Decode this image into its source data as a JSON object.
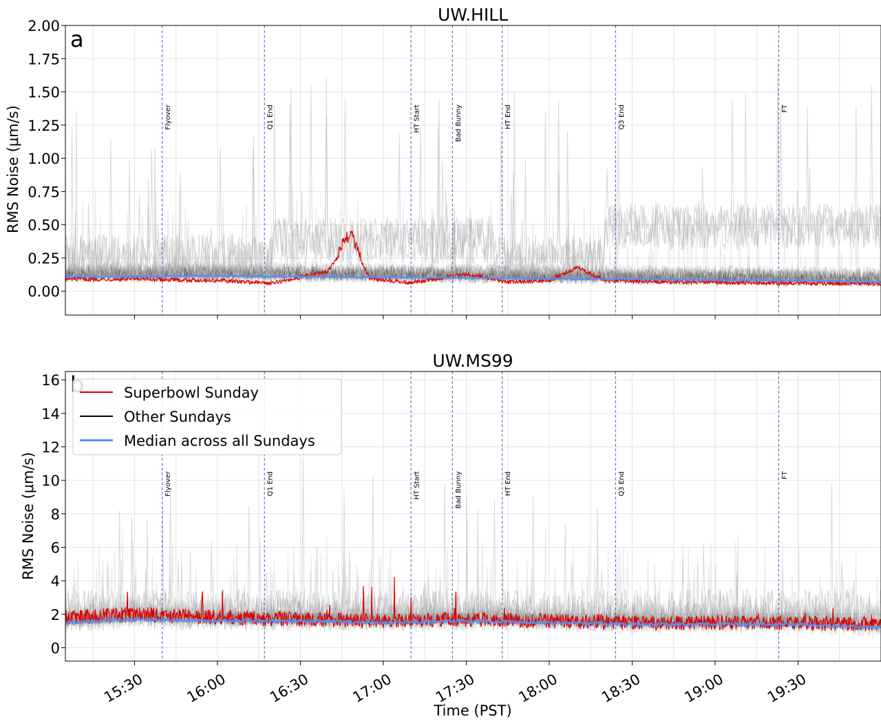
{
  "figure": {
    "xlabel": "Time (PST)",
    "x_tick_labels": [
      "15:30",
      "16:00",
      "16:30",
      "17:00",
      "17:30",
      "18:00",
      "18:30",
      "19:00",
      "19:30"
    ]
  },
  "legend": {
    "entries": [
      {
        "label": "Superbowl Sunday",
        "color": "#dd0000"
      },
      {
        "label": "Other Sundays",
        "color": "#000000"
      },
      {
        "label": "Median across all Sundays",
        "color": "#5b8def"
      }
    ]
  },
  "colors": {
    "superbowl": "#dd0000",
    "other": "#000000",
    "median": "#5b8def",
    "event_line": "#4f7fc8",
    "grid": "#e3e3e3"
  },
  "chart_data": [
    {
      "type": "line",
      "panel_letter": "a",
      "title": "UW.HILL",
      "xlabel": "",
      "ylabel": "RMS Noise (μm/s)",
      "xlim": [
        "15:05",
        "20:00"
      ],
      "ylim": [
        -0.18,
        2.0
      ],
      "yticks": [
        0,
        0.25,
        0.5,
        0.75,
        1.0,
        1.25,
        1.5,
        1.75,
        2.0
      ],
      "ytick_labels": [
        "0.00",
        "0.25",
        "0.50",
        "0.75",
        "1.00",
        "1.25",
        "1.50",
        "1.75",
        "2.00"
      ],
      "grid": true,
      "events": [
        {
          "label": "Flyover",
          "time": "15:40"
        },
        {
          "label": "Q1 End",
          "time": "16:17"
        },
        {
          "label": "HT Start",
          "time": "17:10"
        },
        {
          "label": "Bad Bunny",
          "time": "17:25"
        },
        {
          "label": "HT End",
          "time": "17:43"
        },
        {
          "label": "Q3 End",
          "time": "18:24"
        },
        {
          "label": "FT",
          "time": "19:23"
        }
      ],
      "series": [
        {
          "name": "Median across all Sundays",
          "x": [
            "15:05",
            "15:30",
            "16:00",
            "16:30",
            "17:00",
            "17:30",
            "18:00",
            "18:30",
            "19:00",
            "19:30",
            "20:00"
          ],
          "values": [
            0.11,
            0.11,
            0.115,
            0.11,
            0.105,
            0.1,
            0.095,
            0.09,
            0.085,
            0.08,
            0.07
          ]
        },
        {
          "name": "Superbowl Sunday",
          "x": [
            "15:05",
            "15:30",
            "16:00",
            "16:20",
            "16:40",
            "16:48",
            "16:55",
            "17:10",
            "17:30",
            "17:45",
            "18:00",
            "18:10",
            "18:20",
            "18:40",
            "19:00",
            "19:30",
            "20:00"
          ],
          "values": [
            0.09,
            0.09,
            0.08,
            0.06,
            0.15,
            0.4,
            0.1,
            0.06,
            0.13,
            0.07,
            0.08,
            0.18,
            0.08,
            0.07,
            0.065,
            0.06,
            0.055
          ]
        },
        {
          "name": "Other Sundays",
          "x": [
            "15:05",
            "15:30",
            "16:00",
            "16:30",
            "17:00",
            "17:30",
            "18:00",
            "18:30",
            "19:00",
            "19:30",
            "20:00"
          ],
          "values": [
            0.17,
            0.18,
            0.17,
            0.17,
            0.16,
            0.15,
            0.14,
            0.13,
            0.12,
            0.12,
            0.11
          ]
        }
      ]
    },
    {
      "type": "line",
      "panel_letter": "b",
      "title": "UW.MS99",
      "xlabel": "Time (PST)",
      "ylabel": "RMS Noise (μm/s)",
      "xlim": [
        "15:05",
        "20:00"
      ],
      "ylim": [
        -0.8,
        16.5
      ],
      "yticks": [
        0,
        2,
        4,
        6,
        8,
        10,
        12,
        14,
        16
      ],
      "ytick_labels": [
        "0",
        "2",
        "4",
        "6",
        "8",
        "10",
        "12",
        "14",
        "16"
      ],
      "grid": true,
      "legend_position": "top-left",
      "events": [
        {
          "label": "Flyover",
          "time": "15:40"
        },
        {
          "label": "Q1 End",
          "time": "16:17"
        },
        {
          "label": "HT Start",
          "time": "17:10"
        },
        {
          "label": "Bad Bunny",
          "time": "17:25"
        },
        {
          "label": "HT End",
          "time": "17:43"
        },
        {
          "label": "Q3 End",
          "time": "18:24"
        },
        {
          "label": "FT",
          "time": "19:23"
        }
      ],
      "series": [
        {
          "name": "Median across all Sundays",
          "x": [
            "15:05",
            "15:30",
            "16:00",
            "16:30",
            "17:00",
            "17:30",
            "18:00",
            "18:30",
            "19:00",
            "19:30",
            "20:00"
          ],
          "values": [
            1.5,
            1.7,
            1.6,
            1.6,
            1.5,
            1.6,
            1.5,
            1.4,
            1.4,
            1.4,
            1.2
          ]
        },
        {
          "name": "Superbowl Sunday",
          "x": [
            "15:05",
            "15:30",
            "16:00",
            "16:30",
            "17:00",
            "17:30",
            "18:00",
            "18:30",
            "19:00",
            "19:30",
            "20:00"
          ],
          "values": [
            1.8,
            2.0,
            1.8,
            1.7,
            1.6,
            1.7,
            1.6,
            1.5,
            1.5,
            1.5,
            1.4
          ]
        },
        {
          "name": "Other Sundays",
          "x": [
            "15:05",
            "15:30",
            "16:00",
            "16:30",
            "17:00",
            "17:30",
            "18:00",
            "18:30",
            "19:00",
            "19:30",
            "20:00"
          ],
          "values": [
            2.2,
            2.3,
            2.2,
            2.2,
            2.1,
            2.1,
            2.0,
            2.0,
            1.9,
            1.9,
            1.8
          ]
        }
      ]
    }
  ]
}
